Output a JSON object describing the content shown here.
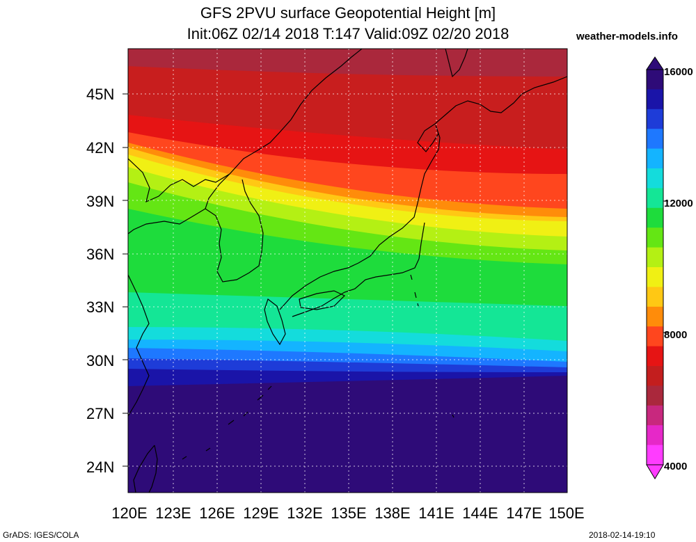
{
  "title_line1": "GFS 2PVU surface Geopotential Height [m]",
  "title_line2": "Init:06Z 02/14 2018 T:147 Valid:09Z 02/20 2018",
  "site": "weather-models.info",
  "footer_left": "GrADS: IGES/COLA",
  "footer_right": "2018-02-14-19:10",
  "lat_labels": [
    "45N",
    "42N",
    "39N",
    "36N",
    "33N",
    "30N",
    "27N",
    "24N"
  ],
  "lon_labels": [
    "120E",
    "123E",
    "126E",
    "129E",
    "132E",
    "135E",
    "138E",
    "141E",
    "144E",
    "147E",
    "150E"
  ],
  "colorbar_labels": [
    "16000",
    "12000",
    "8000",
    "4000"
  ],
  "colorbar_colors": [
    "#2e0b78",
    "#1a14a8",
    "#1e3cd8",
    "#1e78ff",
    "#14b4ff",
    "#14dcdc",
    "#14e696",
    "#1edc3c",
    "#64e614",
    "#b4f014",
    "#f0f014",
    "#ffc814",
    "#ff8c0a",
    "#ff461e",
    "#e61414",
    "#c31e1e",
    "#aa283c",
    "#c8287e",
    "#e628c8",
    "#ff3cff"
  ],
  "map_bands": [
    "#ff3cff",
    "#aa283c",
    "#c81e1e",
    "#e61414",
    "#ff461e",
    "#ff8c0a",
    "#ffc814",
    "#f0f014",
    "#b4f014",
    "#64e614",
    "#1edc3c",
    "#14e696",
    "#14dcdc",
    "#14b4ff",
    "#1e78ff",
    "#1e3cd8",
    "#1a14a8",
    "#2e0b78"
  ],
  "chart_data": {
    "type": "heatmap",
    "variable": "2PVU surface Geopotential Height",
    "units": "m",
    "lon_range": [
      120,
      150
    ],
    "lat_range": [
      22.5,
      47.5
    ],
    "colorbar_range": [
      4000,
      16000
    ],
    "grid": true,
    "zones": [
      {
        "region": "north of ~41N in west, ~37N east of 138E",
        "value_range": [
          5500,
          7500
        ]
      },
      {
        "region": "narrow band near 40N",
        "value_range": [
          7500,
          9500
        ]
      },
      {
        "region": "central band 33N-40N",
        "value_range": [
          10000,
          12000
        ]
      },
      {
        "region": "sharp gradient near 30-31N",
        "value_range": [
          12000,
          15000
        ]
      },
      {
        "region": "south of 29N",
        "value_range": [
          15000,
          16000
        ]
      }
    ]
  }
}
